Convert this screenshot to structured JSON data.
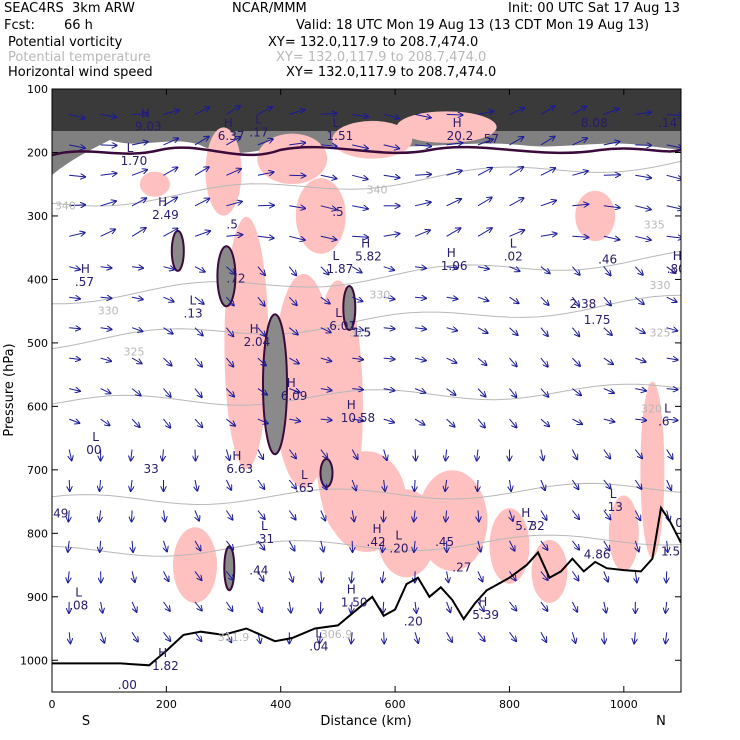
{
  "header": {
    "model": "SEAC4RS  3km ARW",
    "center": "NCAR/MMM",
    "init": "Init: 00 UTC Sat 17 Aug 13",
    "fcst_label": "Fcst:",
    "fcst_value": "66 h",
    "valid": "Valid: 18 UTC Mon 19 Aug 13 (13 CDT Mon 19 Aug 13)"
  },
  "fields": [
    {
      "name": "Potential vorticity",
      "xy": "XY= 132.0,117.9 to 208.7,474.0",
      "color": "#000000"
    },
    {
      "name": "Potential temperature",
      "xy": "XY= 132.0,117.9 to 208.7,474.0",
      "color": "#b8b8b8"
    },
    {
      "name": "Horizontal wind speed",
      "xy": "XY= 132.0,117.9 to 208.7,474.0",
      "color": "#000000"
    }
  ],
  "chart_data": {
    "type": "cross-section",
    "xlabel": "Distance (km)",
    "ylabel": "Pressure (hPa)",
    "xlim": [
      0,
      1100
    ],
    "ylim": [
      1050,
      100
    ],
    "x_ticks": [
      0,
      200,
      400,
      600,
      800,
      1000
    ],
    "y_ticks": [
      100,
      200,
      300,
      400,
      500,
      600,
      700,
      800,
      900,
      1000
    ],
    "direction_labels": {
      "left": "S",
      "right": "N"
    },
    "colors": {
      "pv_contour": "#3a0a3a",
      "theta_contour": "#b8b8b8",
      "pv_fill": "#ffc0c0",
      "wind_arrows": "#1a1a9a",
      "labels": "#2a1a6a",
      "terrain": "#000000"
    },
    "theta_labels": [
      {
        "x": 5,
        "p": 290,
        "text": "340"
      },
      {
        "x": 550,
        "p": 265,
        "text": "340"
      },
      {
        "x": 1035,
        "p": 320,
        "text": "335"
      },
      {
        "x": 80,
        "p": 455,
        "text": "330"
      },
      {
        "x": 555,
        "p": 430,
        "text": "330"
      },
      {
        "x": 1045,
        "p": 415,
        "text": "330"
      },
      {
        "x": 125,
        "p": 520,
        "text": "325"
      },
      {
        "x": 520,
        "p": 490,
        "text": "325"
      },
      {
        "x": 1045,
        "p": 490,
        "text": "325"
      },
      {
        "x": 1030,
        "p": 610,
        "text": "320"
      },
      {
        "x": 290,
        "p": 970,
        "text": "311.9"
      },
      {
        "x": 470,
        "p": 965,
        "text": "306.9"
      }
    ],
    "extrema_labels": [
      {
        "x": 145,
        "p": 165,
        "letter": "H",
        "value": "9.03"
      },
      {
        "x": 290,
        "p": 180,
        "letter": "H",
        "value": "6.37"
      },
      {
        "x": 345,
        "p": 175,
        "letter": "L",
        "value": ".17"
      },
      {
        "x": 480,
        "p": 180,
        "letter": "L",
        "value": "1.51"
      },
      {
        "x": 690,
        "p": 180,
        "letter": "H",
        "value": "20.2"
      },
      {
        "x": 755,
        "p": 185,
        "letter": "",
        "value": "57"
      },
      {
        "x": 925,
        "p": 160,
        "letter": "",
        "value": "8.08"
      },
      {
        "x": 1060,
        "p": 160,
        "letter": "",
        "value": ".14"
      },
      {
        "x": 120,
        "p": 220,
        "letter": "L",
        "value": "1.70"
      },
      {
        "x": 175,
        "p": 305,
        "letter": "H",
        "value": "2.49"
      },
      {
        "x": 305,
        "p": 320,
        "letter": "",
        "value": ".5"
      },
      {
        "x": 490,
        "p": 300,
        "letter": "",
        "value": ".5"
      },
      {
        "x": 530,
        "p": 370,
        "letter": "H",
        "value": "5.82"
      },
      {
        "x": 480,
        "p": 390,
        "letter": "L",
        "value": "1.87"
      },
      {
        "x": 680,
        "p": 385,
        "letter": "H",
        "value": "1.06"
      },
      {
        "x": 790,
        "p": 370,
        "letter": "L",
        "value": ".02"
      },
      {
        "x": 955,
        "p": 375,
        "letter": "",
        "value": ".46"
      },
      {
        "x": 1075,
        "p": 390,
        "letter": "H",
        "value": ".80"
      },
      {
        "x": 40,
        "p": 410,
        "letter": "H",
        "value": ".57"
      },
      {
        "x": 305,
        "p": 405,
        "letter": "",
        "value": ".72"
      },
      {
        "x": 905,
        "p": 445,
        "letter": "",
        "value": "2.38"
      },
      {
        "x": 930,
        "p": 470,
        "letter": "",
        "value": "1.75"
      },
      {
        "x": 230,
        "p": 460,
        "letter": "L",
        "value": ".13"
      },
      {
        "x": 485,
        "p": 480,
        "letter": "L",
        "value": "6.01"
      },
      {
        "x": 525,
        "p": 490,
        "letter": "",
        "value": "1.5"
      },
      {
        "x": 335,
        "p": 505,
        "letter": "H",
        "value": "2.04"
      },
      {
        "x": 400,
        "p": 590,
        "letter": "H",
        "value": "6.09"
      },
      {
        "x": 505,
        "p": 625,
        "letter": "H",
        "value": "10.58"
      },
      {
        "x": 1060,
        "p": 630,
        "letter": "L",
        "value": ".6"
      },
      {
        "x": 60,
        "p": 675,
        "letter": "L",
        "value": "00"
      },
      {
        "x": 160,
        "p": 705,
        "letter": "",
        "value": "33"
      },
      {
        "x": 305,
        "p": 705,
        "letter": "H",
        "value": "6.63"
      },
      {
        "x": 425,
        "p": 735,
        "letter": "L",
        "value": ".65"
      },
      {
        "x": 965,
        "p": 765,
        "letter": "L",
        "value": ".13"
      },
      {
        "x": 2,
        "p": 775,
        "letter": "",
        "value": "49"
      },
      {
        "x": 355,
        "p": 815,
        "letter": "L",
        "value": ".31"
      },
      {
        "x": 550,
        "p": 820,
        "letter": "H",
        "value": ".42"
      },
      {
        "x": 590,
        "p": 830,
        "letter": "L",
        "value": ".20"
      },
      {
        "x": 670,
        "p": 820,
        "letter": "",
        "value": ".45"
      },
      {
        "x": 810,
        "p": 795,
        "letter": "H",
        "value": "5.7"
      },
      {
        "x": 835,
        "p": 795,
        "letter": "",
        "value": "32"
      },
      {
        "x": 1090,
        "p": 790,
        "letter": "",
        "value": "0"
      },
      {
        "x": 1065,
        "p": 835,
        "letter": "",
        "value": "1.5"
      },
      {
        "x": 345,
        "p": 865,
        "letter": "",
        "value": ".44"
      },
      {
        "x": 700,
        "p": 860,
        "letter": "",
        "value": ".27"
      },
      {
        "x": 930,
        "p": 840,
        "letter": "",
        "value": "4.86"
      },
      {
        "x": 505,
        "p": 915,
        "letter": "H",
        "value": "1.50"
      },
      {
        "x": 735,
        "p": 935,
        "letter": "H",
        "value": "5.39"
      },
      {
        "x": 30,
        "p": 920,
        "letter": "L",
        "value": ".08"
      },
      {
        "x": 615,
        "p": 945,
        "letter": "",
        "value": ".20"
      },
      {
        "x": 450,
        "p": 985,
        "letter": "L",
        "value": ".04"
      },
      {
        "x": 175,
        "p": 1015,
        "letter": "H",
        "value": "1.82"
      },
      {
        "x": 115,
        "p": 1045,
        "letter": "",
        "value": ".00"
      }
    ]
  }
}
